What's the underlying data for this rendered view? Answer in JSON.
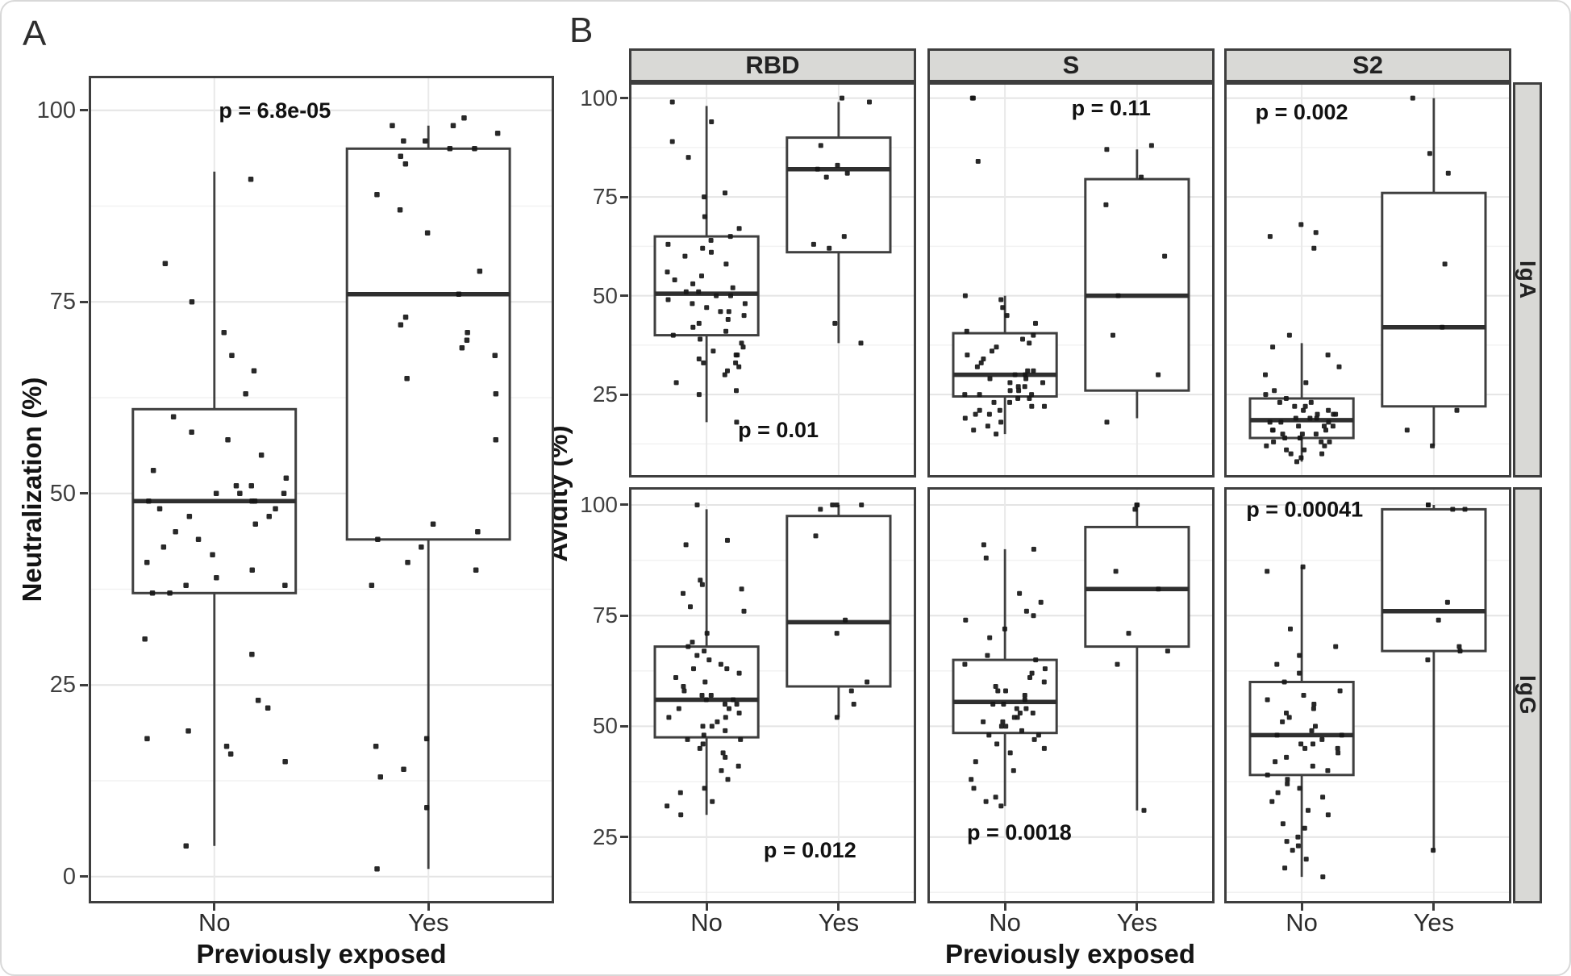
{
  "figure": {
    "panel_a": {
      "label": "A",
      "x_axis_title": "Previously exposed",
      "y_axis_title": "Neutralization (%)"
    },
    "panel_b": {
      "label": "B",
      "x_axis_title": "Previously exposed",
      "y_axis_title": "Avidity (%)",
      "col_labels": [
        "RBD",
        "S",
        "S2"
      ],
      "row_labels": [
        "IgA",
        "IgG"
      ],
      "y_ticks": [
        25,
        50,
        75,
        100
      ]
    },
    "x_categories": [
      "No",
      "Yes"
    ],
    "colors": {
      "background": "#ffffff",
      "box_stroke": "#3f3f3f",
      "median": "#2f2f2f",
      "point": "#161616",
      "grid_major": "#e4e4e4",
      "grid_minor": "#f2f2f2",
      "grid_vertical": "#e9e9e9",
      "facet_border": "#3e3e3e",
      "strip_bg": "#d9d9d6",
      "strip_border": "#3e3e3e",
      "tick_text": "#3f3f3f",
      "p_text": "#111111"
    }
  },
  "chart_data": [
    {
      "id": "panelA",
      "type": "boxplot",
      "panel": "A",
      "xlabel": "Previously exposed",
      "ylabel": "Neutralization (%)",
      "categories": [
        "No",
        "Yes"
      ],
      "y_ticks": [
        0,
        25,
        50,
        75,
        100
      ],
      "ylim": [
        -3.5,
        104.5
      ],
      "grid": true,
      "p_label": "p = 6.8e-05",
      "p_pos": {
        "x_frac": 0.4,
        "y": 100
      },
      "series": [
        {
          "name": "No",
          "box": {
            "whisker_low": 4,
            "q1": 37,
            "median": 49,
            "q3": 61,
            "whisker_high": 92
          },
          "points": [
            4,
            15,
            16,
            17,
            18,
            19,
            22,
            23,
            29,
            31,
            37,
            37,
            38,
            38,
            39,
            40,
            41,
            42,
            43,
            44,
            45,
            46,
            47,
            47,
            48,
            48,
            49,
            49,
            49,
            50,
            50,
            50,
            51,
            51,
            52,
            53,
            55,
            57,
            58,
            60,
            63,
            66,
            68,
            71,
            75,
            80,
            91
          ]
        },
        {
          "name": "Yes",
          "box": {
            "whisker_low": 1,
            "q1": 44,
            "median": 76,
            "q3": 95,
            "whisker_high": 98
          },
          "points": [
            1,
            9,
            13,
            14,
            17,
            18,
            38,
            40,
            41,
            43,
            44,
            45,
            46,
            57,
            63,
            65,
            68,
            69,
            70,
            71,
            72,
            73,
            76,
            79,
            84,
            87,
            89,
            93,
            94,
            95,
            95,
            96,
            96,
            97,
            98,
            98,
            99
          ]
        }
      ]
    },
    {
      "id": "RBD-IgA",
      "type": "boxplot",
      "panel": "B",
      "facet_col": "RBD",
      "facet_row": "IgA",
      "xlabel": "Previously exposed",
      "ylabel": "Avidity (%)",
      "categories": [
        "No",
        "Yes"
      ],
      "y_ticks": [
        25,
        50,
        75,
        100
      ],
      "ylim": [
        4,
        104
      ],
      "grid": true,
      "p_label": "p = 0.01",
      "p_pos": {
        "x_frac": 0.52,
        "y": 16
      },
      "series": [
        {
          "name": "No",
          "box": {
            "whisker_low": 18,
            "q1": 40,
            "median": 50.5,
            "q3": 65,
            "whisker_high": 98
          },
          "points": [
            18,
            25,
            26,
            28,
            30,
            31,
            32,
            33,
            33,
            34,
            35,
            35,
            36,
            37,
            38,
            39,
            40,
            41,
            42,
            43,
            44,
            45,
            46,
            46,
            47,
            48,
            48,
            49,
            50,
            50,
            51,
            51,
            52,
            53,
            54,
            55,
            56,
            58,
            60,
            61,
            62,
            63,
            64,
            65,
            67,
            70,
            75,
            76,
            85,
            89,
            94,
            99
          ]
        },
        {
          "name": "Yes",
          "box": {
            "whisker_low": 38,
            "q1": 61,
            "median": 82,
            "q3": 90,
            "whisker_high": 99
          },
          "points": [
            38,
            43,
            62,
            63,
            65,
            80,
            81,
            82,
            83,
            88,
            99,
            100
          ]
        }
      ]
    },
    {
      "id": "S-IgA",
      "type": "boxplot",
      "panel": "B",
      "facet_col": "S",
      "facet_row": "IgA",
      "xlabel": "Previously exposed",
      "ylabel": "Avidity (%)",
      "categories": [
        "No",
        "Yes"
      ],
      "y_ticks": [
        25,
        50,
        75,
        100
      ],
      "ylim": [
        4,
        104
      ],
      "grid": true,
      "p_label": "p = 0.11",
      "p_pos": {
        "x_frac": 0.64,
        "y": 97.5
      },
      "series": [
        {
          "name": "No",
          "box": {
            "whisker_low": 15,
            "q1": 24.5,
            "median": 30,
            "q3": 40.5,
            "whisker_high": 50
          },
          "points": [
            15,
            16,
            17,
            18,
            19,
            20,
            20,
            21,
            21,
            22,
            22,
            23,
            23,
            24,
            24,
            25,
            25,
            25,
            26,
            26,
            27,
            27,
            28,
            28,
            29,
            29,
            30,
            30,
            31,
            31,
            32,
            33,
            34,
            35,
            36,
            37,
            38,
            39,
            40,
            41,
            43,
            45,
            47,
            49,
            50,
            84,
            100,
            100
          ]
        },
        {
          "name": "Yes",
          "box": {
            "whisker_low": 19,
            "q1": 26,
            "median": 50,
            "q3": 79.5,
            "whisker_high": 87
          },
          "points": [
            18,
            30,
            40,
            50,
            60,
            73,
            80,
            87,
            88
          ]
        }
      ]
    },
    {
      "id": "S2-IgA",
      "type": "boxplot",
      "panel": "B",
      "facet_col": "S2",
      "facet_row": "IgA",
      "xlabel": "Previously exposed",
      "ylabel": "Avidity (%)",
      "categories": [
        "No",
        "Yes"
      ],
      "y_ticks": [
        25,
        50,
        75,
        100
      ],
      "ylim": [
        4,
        104
      ],
      "grid": true,
      "p_label": "p = 0.002",
      "p_pos": {
        "x_frac": 0.27,
        "y": 96.5
      },
      "series": [
        {
          "name": "No",
          "box": {
            "whisker_low": 8,
            "q1": 14,
            "median": 18.5,
            "q3": 24,
            "whisker_high": 38
          },
          "points": [
            8,
            9,
            10,
            10,
            11,
            11,
            12,
            12,
            13,
            13,
            13,
            14,
            14,
            14,
            15,
            15,
            15,
            16,
            16,
            16,
            17,
            17,
            17,
            18,
            18,
            18,
            19,
            19,
            19,
            20,
            20,
            20,
            21,
            21,
            22,
            22,
            23,
            23,
            24,
            25,
            26,
            28,
            30,
            32,
            35,
            37,
            40,
            62,
            65,
            66,
            68
          ]
        },
        {
          "name": "Yes",
          "box": {
            "whisker_low": 12,
            "q1": 22,
            "median": 42,
            "q3": 76,
            "whisker_high": 100
          },
          "points": [
            12,
            16,
            21,
            42,
            58,
            81,
            86,
            100
          ]
        }
      ]
    },
    {
      "id": "RBD-IgG",
      "type": "boxplot",
      "panel": "B",
      "facet_col": "RBD",
      "facet_row": "IgG",
      "xlabel": "Previously exposed",
      "ylabel": "Avidity (%)",
      "categories": [
        "No",
        "Yes"
      ],
      "y_ticks": [
        25,
        50,
        75,
        100
      ],
      "ylim": [
        10,
        104
      ],
      "grid": true,
      "p_label": "p = 0.012",
      "p_pos": {
        "x_frac": 0.63,
        "y": 22
      },
      "series": [
        {
          "name": "No",
          "box": {
            "whisker_low": 30,
            "q1": 47.5,
            "median": 56,
            "q3": 68,
            "whisker_high": 99
          },
          "points": [
            30,
            32,
            33,
            35,
            36,
            38,
            40,
            41,
            43,
            44,
            45,
            46,
            47,
            47,
            48,
            49,
            50,
            50,
            51,
            52,
            52,
            53,
            54,
            54,
            55,
            55,
            56,
            56,
            57,
            57,
            58,
            59,
            60,
            61,
            62,
            63,
            63,
            64,
            65,
            66,
            67,
            68,
            69,
            71,
            76,
            77,
            80,
            81,
            82,
            83,
            91,
            92,
            100
          ]
        },
        {
          "name": "Yes",
          "box": {
            "whisker_low": 52,
            "q1": 59,
            "median": 73.5,
            "q3": 97.5,
            "whisker_high": 100
          },
          "points": [
            52,
            55,
            58,
            60,
            71,
            74,
            93,
            99,
            100,
            100,
            100
          ]
        }
      ]
    },
    {
      "id": "S-IgG",
      "type": "boxplot",
      "panel": "B",
      "facet_col": "S",
      "facet_row": "IgG",
      "xlabel": "Previously exposed",
      "ylabel": "Avidity (%)",
      "categories": [
        "No",
        "Yes"
      ],
      "y_ticks": [
        25,
        50,
        75,
        100
      ],
      "ylim": [
        10,
        104
      ],
      "grid": true,
      "p_label": "p = 0.0018",
      "p_pos": {
        "x_frac": 0.32,
        "y": 26
      },
      "series": [
        {
          "name": "No",
          "box": {
            "whisker_low": 32,
            "q1": 48.5,
            "median": 55.5,
            "q3": 65,
            "whisker_high": 90
          },
          "points": [
            32,
            33,
            34,
            36,
            38,
            40,
            42,
            44,
            45,
            46,
            47,
            48,
            48,
            49,
            50,
            50,
            51,
            51,
            52,
            52,
            53,
            53,
            54,
            54,
            55,
            55,
            56,
            57,
            58,
            58,
            59,
            60,
            61,
            62,
            63,
            64,
            65,
            66,
            70,
            72,
            74,
            75,
            76,
            78,
            80,
            88,
            90,
            91
          ]
        },
        {
          "name": "Yes",
          "box": {
            "whisker_low": 31,
            "q1": 68,
            "median": 81,
            "q3": 95,
            "whisker_high": 99.5
          },
          "points": [
            31,
            64,
            67,
            71,
            81,
            85,
            99,
            100,
            100
          ]
        }
      ]
    },
    {
      "id": "S2-IgG",
      "type": "boxplot",
      "panel": "B",
      "facet_col": "S2",
      "facet_row": "IgG",
      "xlabel": "Previously exposed",
      "ylabel": "Avidity (%)",
      "categories": [
        "No",
        "Yes"
      ],
      "y_ticks": [
        25,
        50,
        75,
        100
      ],
      "ylim": [
        10,
        104
      ],
      "grid": true,
      "p_label": "p = 0.00041",
      "p_pos": {
        "x_frac": 0.28,
        "y": 99
      },
      "series": [
        {
          "name": "No",
          "box": {
            "whisker_low": 16,
            "q1": 39,
            "median": 48,
            "q3": 60,
            "whisker_high": 86
          },
          "points": [
            16,
            18,
            20,
            22,
            23,
            24,
            25,
            27,
            28,
            30,
            31,
            33,
            34,
            35,
            36,
            37,
            38,
            39,
            40,
            41,
            42,
            43,
            44,
            45,
            45,
            46,
            46,
            47,
            48,
            48,
            49,
            50,
            51,
            52,
            53,
            54,
            55,
            56,
            57,
            58,
            60,
            62,
            64,
            66,
            68,
            72,
            85,
            86
          ]
        },
        {
          "name": "Yes",
          "box": {
            "whisker_low": 22,
            "q1": 67,
            "median": 76,
            "q3": 99,
            "whisker_high": 100
          },
          "points": [
            22,
            65,
            67,
            68,
            74,
            78,
            99,
            99,
            100,
            100
          ]
        }
      ]
    }
  ]
}
